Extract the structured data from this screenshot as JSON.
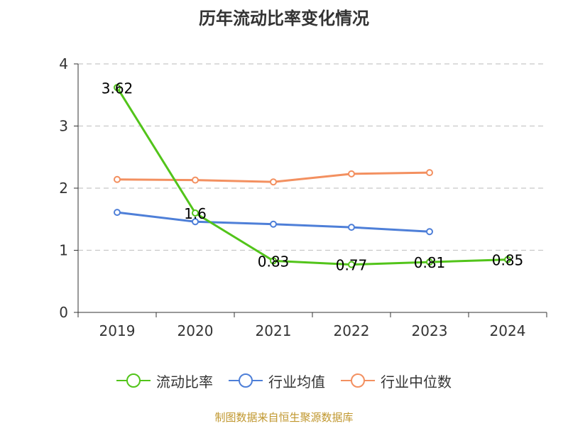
{
  "chart_data": {
    "type": "line",
    "title": "历年流动比率变化情况",
    "categories": [
      "2019",
      "2020",
      "2021",
      "2022",
      "2023",
      "2024"
    ],
    "ylim": [
      0,
      4
    ],
    "yticks": [
      "0",
      "1",
      "2",
      "3",
      "4"
    ],
    "grid": true,
    "legend_position": "bottom",
    "series": [
      {
        "name": "流动比率",
        "color": "#52c41a",
        "values": [
          3.62,
          1.6,
          0.83,
          0.77,
          0.81,
          0.85
        ],
        "labels": [
          "3.62",
          "1.6",
          "0.83",
          "0.77",
          "0.81",
          "0.85"
        ]
      },
      {
        "name": "行业均值",
        "color": "#4e7fd8",
        "values": [
          1.61,
          1.46,
          1.42,
          1.37,
          1.3,
          null
        ]
      },
      {
        "name": "行业中位数",
        "color": "#f39060",
        "values": [
          2.14,
          2.13,
          2.1,
          2.23,
          2.25,
          null
        ]
      }
    ]
  },
  "source": "制图数据来自恒生聚源数据库"
}
